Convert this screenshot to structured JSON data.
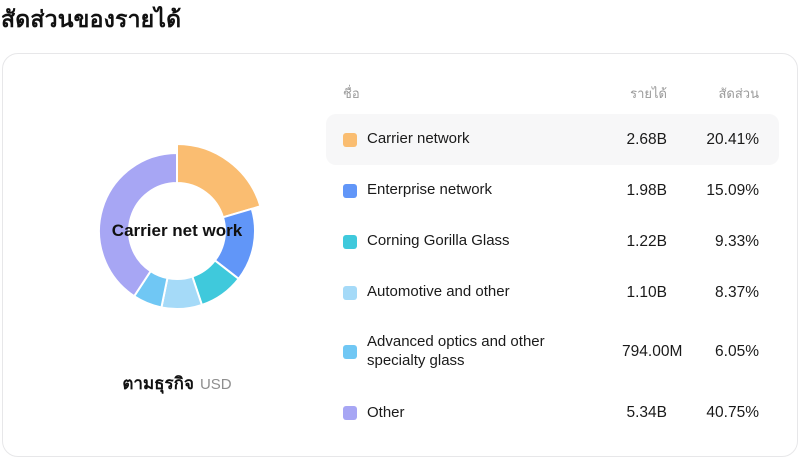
{
  "page": {
    "title": "สัดส่วนของรายได้"
  },
  "chart": {
    "center_label": "Carrier net work",
    "caption": "ตามธุรกิจ",
    "unit": "USD"
  },
  "table": {
    "headers": {
      "name": "ชื่อ",
      "revenue": "รายได้",
      "share": "สัดส่วน"
    }
  },
  "chart_data": {
    "type": "pie",
    "title": "สัดส่วนของรายได้",
    "subtitle": "ตามธุรกิจ",
    "unit": "USD",
    "donut": true,
    "start_angle_deg": 0,
    "clockwise": true,
    "center_label": "Carrier net work",
    "highlighted_category": "Carrier network",
    "rows": [
      {
        "label": "Carrier network",
        "revenue": "2.68B",
        "share": "20.41%",
        "share_value": 20.41,
        "color": "#FABD71",
        "highlighted": true
      },
      {
        "label": "Enterprise network",
        "revenue": "1.98B",
        "share": "15.09%",
        "share_value": 15.09,
        "color": "#6196F8",
        "highlighted": false
      },
      {
        "label": "Corning Gorilla Glass",
        "revenue": "1.22B",
        "share": "9.33%",
        "share_value": 9.33,
        "color": "#3FC9DC",
        "highlighted": false
      },
      {
        "label": "Automotive and other",
        "revenue": "1.10B",
        "share": "8.37%",
        "share_value": 8.37,
        "color": "#A5DAF8",
        "highlighted": false
      },
      {
        "label": "Advanced optics and other specialty glass",
        "revenue": "794.00M",
        "share": "6.05%",
        "share_value": 6.05,
        "color": "#70C7F4",
        "highlighted": false
      },
      {
        "label": "Other",
        "revenue": "5.34B",
        "share": "40.75%",
        "share_value": 40.75,
        "color": "#A7A6F4",
        "highlighted": false
      }
    ]
  }
}
